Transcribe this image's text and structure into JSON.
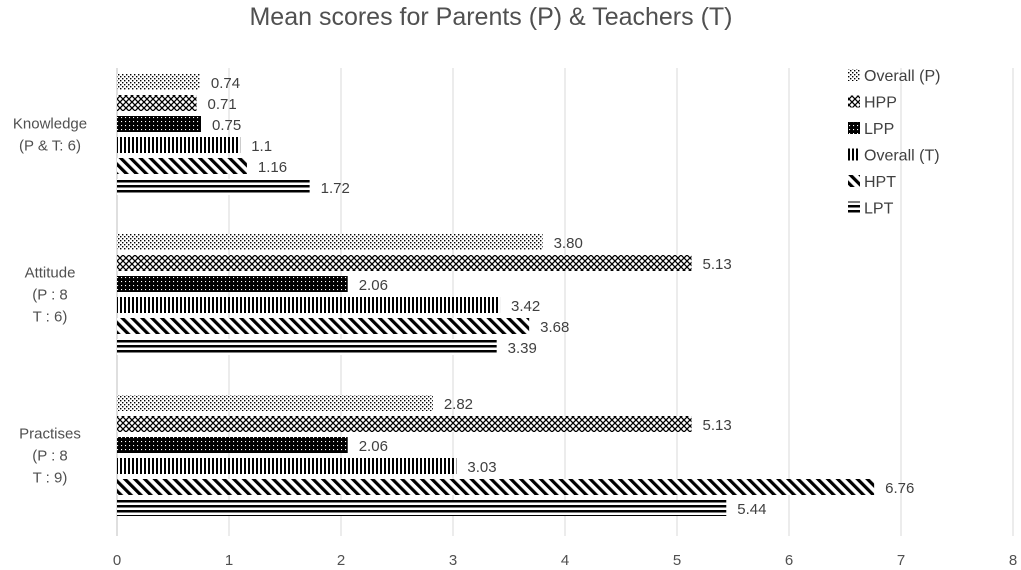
{
  "chart_data": {
    "type": "bar",
    "orientation": "horizontal",
    "title": "Mean scores for Parents (P) & Teachers (T)",
    "xlim": [
      0,
      8
    ],
    "xticks": [
      0,
      1,
      2,
      3,
      4,
      5,
      6,
      7,
      8
    ],
    "grid": "vertical",
    "legend_position": "right",
    "categories": [
      {
        "lines": [
          "Knowledge",
          "(P & T: 6)"
        ]
      },
      {
        "lines": [
          "Attitude",
          "(P : 8",
          "T : 6)"
        ]
      },
      {
        "lines": [
          "Practises",
          "(P : 8",
          "T : 9)"
        ]
      }
    ],
    "series": [
      {
        "name": "Overall (P)",
        "pattern": "dots",
        "values": [
          0.74,
          3.8,
          2.82
        ],
        "labels": [
          "0.74",
          "3.80",
          "2.82"
        ]
      },
      {
        "name": "HPP",
        "pattern": "crosshatch",
        "values": [
          0.71,
          5.13,
          5.13
        ],
        "labels": [
          "0.71",
          "5.13",
          "5.13"
        ]
      },
      {
        "name": "LPP",
        "pattern": "solid-dots",
        "values": [
          0.75,
          2.06,
          2.06
        ],
        "labels": [
          "0.75",
          "2.06",
          "2.06"
        ]
      },
      {
        "name": "Overall (T)",
        "pattern": "vertical",
        "values": [
          1.1,
          3.42,
          3.03
        ],
        "labels": [
          "1.1",
          "3.42",
          "3.03"
        ]
      },
      {
        "name": "HPT",
        "pattern": "diagonal",
        "values": [
          1.16,
          3.68,
          6.76
        ],
        "labels": [
          "1.16",
          "3.68",
          "6.76"
        ]
      },
      {
        "name": "LPT",
        "pattern": "horizontal",
        "values": [
          1.72,
          3.39,
          5.44
        ],
        "labels": [
          "1.72",
          "3.39",
          "5.44"
        ]
      }
    ]
  }
}
